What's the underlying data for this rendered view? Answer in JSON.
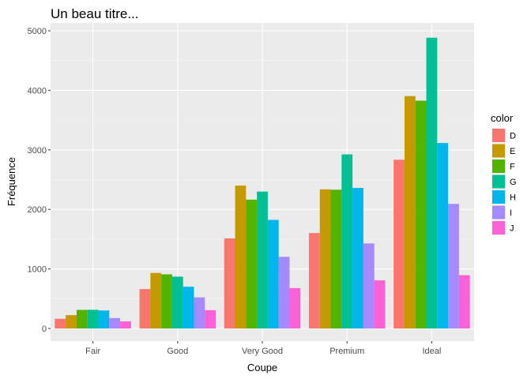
{
  "chart_data": {
    "type": "bar",
    "title": "Un beau titre...",
    "xlabel": "Coupe",
    "ylabel": "Fréquence",
    "categories": [
      "Fair",
      "Good",
      "Very Good",
      "Premium",
      "Ideal"
    ],
    "ylim": [
      0,
      5000
    ],
    "yticks": [
      0,
      1000,
      2000,
      3000,
      4000,
      5000
    ],
    "grid": true,
    "legend_position": "right",
    "legend_title": "color",
    "series": [
      {
        "name": "D",
        "color": "#F8766D",
        "values": [
          163,
          662,
          1513,
          1603,
          2834
        ]
      },
      {
        "name": "E",
        "color": "#C49A00",
        "values": [
          224,
          933,
          2400,
          2337,
          3903
        ]
      },
      {
        "name": "F",
        "color": "#53B400",
        "values": [
          312,
          909,
          2164,
          2331,
          3826
        ]
      },
      {
        "name": "G",
        "color": "#00C094",
        "values": [
          314,
          871,
          2299,
          2924,
          4884
        ]
      },
      {
        "name": "H",
        "color": "#00B6EB",
        "values": [
          303,
          702,
          1824,
          2360,
          3115
        ]
      },
      {
        "name": "I",
        "color": "#A58AFF",
        "values": [
          175,
          522,
          1204,
          1428,
          2093
        ]
      },
      {
        "name": "J",
        "color": "#FB61D7",
        "values": [
          119,
          307,
          678,
          808,
          896
        ]
      }
    ]
  }
}
